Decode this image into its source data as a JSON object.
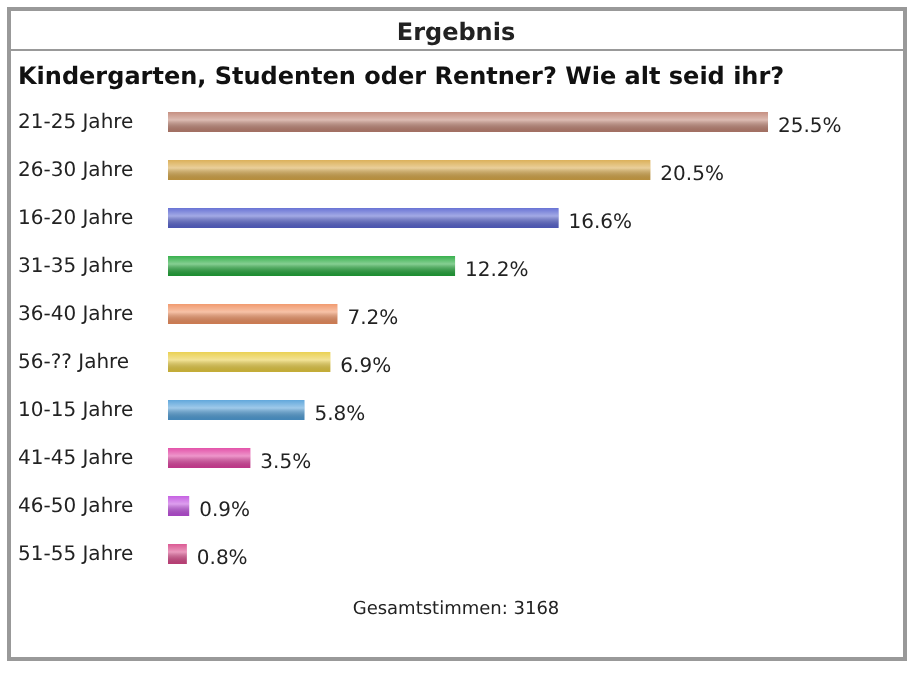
{
  "chart_data": {
    "type": "bar",
    "orientation": "horizontal",
    "title": "Ergebnis",
    "subtitle": "Kindergarten, Studenten oder Rentner? Wie alt seid ihr?",
    "categories": [
      "21-25 Jahre",
      "26-30 Jahre",
      "16-20 Jahre",
      "31-35 Jahre",
      "36-40 Jahre",
      "56-?? Jahre",
      "10-15 Jahre",
      "41-45 Jahre",
      "46-50 Jahre",
      "51-55 Jahre"
    ],
    "values": [
      25.5,
      20.5,
      16.6,
      12.2,
      7.2,
      6.9,
      5.8,
      3.5,
      0.9,
      0.8
    ],
    "value_labels": [
      "25.5%",
      "20.5%",
      "16.6%",
      "12.2%",
      "7.2%",
      "6.9%",
      "5.8%",
      "3.5%",
      "0.9%",
      "0.8%"
    ],
    "colors": [
      "#c08474",
      "#d8a848",
      "#5864d0",
      "#22a83a",
      "#f09060",
      "#e8cc40",
      "#509ed8",
      "#e040a0",
      "#c050e0",
      "#d84888"
    ],
    "annotations": [
      "Gesamtstimmen: 3168"
    ]
  }
}
